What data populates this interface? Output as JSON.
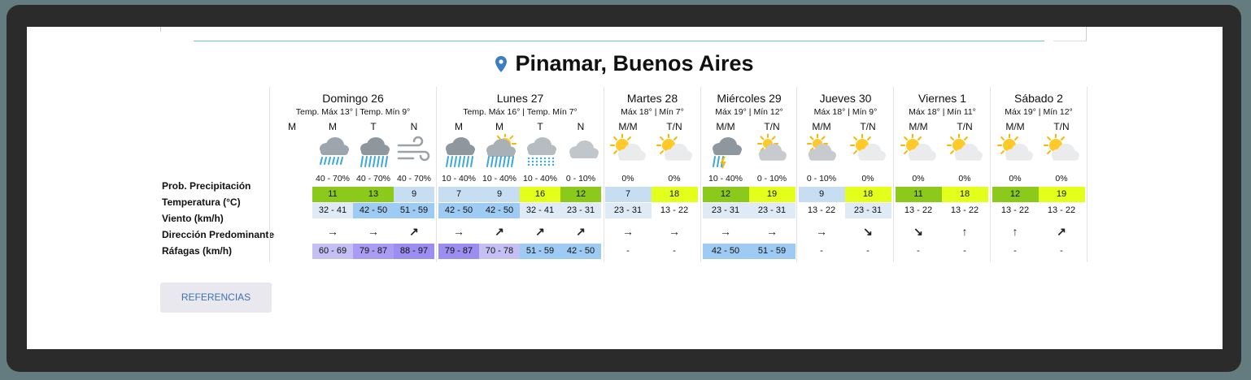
{
  "location": {
    "title": "Pinamar, Buenos Aires",
    "pin_icon": "location-pin-icon",
    "pin_color": "#3c7ec4"
  },
  "row_labels": {
    "precip": "Prob. Precipitación",
    "temp": "Temperatura (°C)",
    "wind": "Viento (km/h)",
    "dir": "Dirección Predominante",
    "gusts": "Ráfagas (km/h)"
  },
  "colors": {
    "temp_cold": "#c6ddf2",
    "temp_green": "#8bc91b",
    "temp_yellow": "#e3ff1c",
    "wind_light": "#deebf7",
    "wind_mid": "#9ecbf3",
    "gust_purple1": "#c5c0f4",
    "gust_purple2": "#a99cf2",
    "gust_purple3": "#9c8df0",
    "gust_blue": "#9ecbf3"
  },
  "days": [
    {
      "name": "Domingo 26",
      "sub": "Temp. Máx 13° | Temp. Mín 9°",
      "periods": [
        {
          "label": "M",
          "icon": "",
          "prob": "",
          "temp": "",
          "wind": "",
          "dir": "",
          "gust": ""
        },
        {
          "label": "M",
          "icon": "rain-cloud-icon",
          "prob": "40 - 70%",
          "temp": "11",
          "temp_color": "green",
          "wind": "32 - 41",
          "wind_color": "light",
          "dir": "→",
          "gust": "60 - 69",
          "gust_color": "purple1"
        },
        {
          "label": "T",
          "icon": "heavy-rain-cloud-icon",
          "prob": "40 - 70%",
          "temp": "13",
          "temp_color": "green",
          "wind": "42 - 50",
          "wind_color": "mid",
          "dir": "→",
          "gust": "79 - 87",
          "gust_color": "purple2"
        },
        {
          "label": "N",
          "icon": "wind-icon",
          "prob": "40 - 70%",
          "temp": "9",
          "temp_color": "cold",
          "wind": "51 - 59",
          "wind_color": "mid",
          "dir": "↗",
          "gust": "88 - 97",
          "gust_color": "purple3"
        }
      ]
    },
    {
      "name": "Lunes 27",
      "sub": "Temp. Máx 16° | Temp. Mín 7°",
      "periods": [
        {
          "label": "M",
          "icon": "heavy-rain-cloud-icon",
          "prob": "10 - 40%",
          "temp": "7",
          "temp_color": "cold",
          "wind": "42 - 50",
          "wind_color": "mid",
          "dir": "→",
          "gust": "79 - 87",
          "gust_color": "purple3"
        },
        {
          "label": "M",
          "icon": "sun-rain-cloud-icon",
          "prob": "10 - 40%",
          "temp": "9",
          "temp_color": "cold",
          "wind": "42 - 50",
          "wind_color": "mid",
          "dir": "↗",
          "gust": "70 - 78",
          "gust_color": "purple1"
        },
        {
          "label": "T",
          "icon": "sleet-cloud-icon",
          "prob": "10 - 40%",
          "temp": "16",
          "temp_color": "yellow",
          "wind": "32 - 41",
          "wind_color": "light",
          "dir": "↗",
          "gust": "51 - 59",
          "gust_color": "blue"
        },
        {
          "label": "N",
          "icon": "cloudy-icon",
          "prob": "0 - 10%",
          "temp": "12",
          "temp_color": "green",
          "wind": "23 - 31",
          "wind_color": "light",
          "dir": "↗",
          "gust": "42 - 50",
          "gust_color": "blue"
        }
      ]
    },
    {
      "name": "Martes 28",
      "sub": "Máx 18° | Mín 7°",
      "periods": [
        {
          "label": "M/M",
          "icon": "partly-cloudy-icon",
          "prob": "0%",
          "temp": "7",
          "temp_color": "cold",
          "wind": "23 - 31",
          "wind_color": "light",
          "dir": "→",
          "gust": "-",
          "gust_color": "none"
        },
        {
          "label": "T/N",
          "icon": "partly-cloudy-icon",
          "prob": "0%",
          "temp": "18",
          "temp_color": "yellow",
          "wind": "13 - 22",
          "wind_color": "none",
          "dir": "→",
          "gust": "-",
          "gust_color": "none"
        }
      ]
    },
    {
      "name": "Miércoles 29",
      "sub": "Máx 19° | Mín 12°",
      "periods": [
        {
          "label": "M/M",
          "icon": "storm-rain-cloud-icon",
          "prob": "10 - 40%",
          "temp": "12",
          "temp_color": "green",
          "wind": "23 - 31",
          "wind_color": "light",
          "dir": "→",
          "gust": "42 - 50",
          "gust_color": "blue"
        },
        {
          "label": "T/N",
          "icon": "sun-cloudy-icon",
          "prob": "0 - 10%",
          "temp": "19",
          "temp_color": "yellow",
          "wind": "23 - 31",
          "wind_color": "light",
          "dir": "→",
          "gust": "51 - 59",
          "gust_color": "blue"
        }
      ]
    },
    {
      "name": "Jueves 30",
      "sub": "Máx 18° | Mín 9°",
      "periods": [
        {
          "label": "M/M",
          "icon": "sun-cloudy-icon",
          "prob": "0 - 10%",
          "temp": "9",
          "temp_color": "cold",
          "wind": "13 - 22",
          "wind_color": "none",
          "dir": "→",
          "gust": "-",
          "gust_color": "none"
        },
        {
          "label": "T/N",
          "icon": "partly-cloudy-icon",
          "prob": "0%",
          "temp": "18",
          "temp_color": "yellow",
          "wind": "23 - 31",
          "wind_color": "light",
          "dir": "↘",
          "gust": "-",
          "gust_color": "none"
        }
      ]
    },
    {
      "name": "Viernes 1",
      "sub": "Máx 18° | Mín 11°",
      "periods": [
        {
          "label": "M/M",
          "icon": "partly-cloudy-icon",
          "prob": "0%",
          "temp": "11",
          "temp_color": "green",
          "wind": "13 - 22",
          "wind_color": "none",
          "dir": "↘",
          "gust": "-",
          "gust_color": "none"
        },
        {
          "label": "T/N",
          "icon": "partly-cloudy-icon",
          "prob": "0%",
          "temp": "18",
          "temp_color": "yellow",
          "wind": "13 - 22",
          "wind_color": "none",
          "dir": "↑",
          "gust": "-",
          "gust_color": "none"
        }
      ]
    },
    {
      "name": "Sábado 2",
      "sub": "Máx 19° | Mín 12°",
      "periods": [
        {
          "label": "M/M",
          "icon": "partly-cloudy-icon",
          "prob": "0%",
          "temp": "12",
          "temp_color": "green",
          "wind": "13 - 22",
          "wind_color": "none",
          "dir": "↑",
          "gust": "-",
          "gust_color": "none"
        },
        {
          "label": "T/N",
          "icon": "partly-cloudy-icon",
          "prob": "0%",
          "temp": "19",
          "temp_color": "yellow",
          "wind": "13 - 22",
          "wind_color": "none",
          "dir": "↗",
          "gust": "-",
          "gust_color": "none"
        }
      ]
    }
  ],
  "references_button": "REFERENCIAS"
}
